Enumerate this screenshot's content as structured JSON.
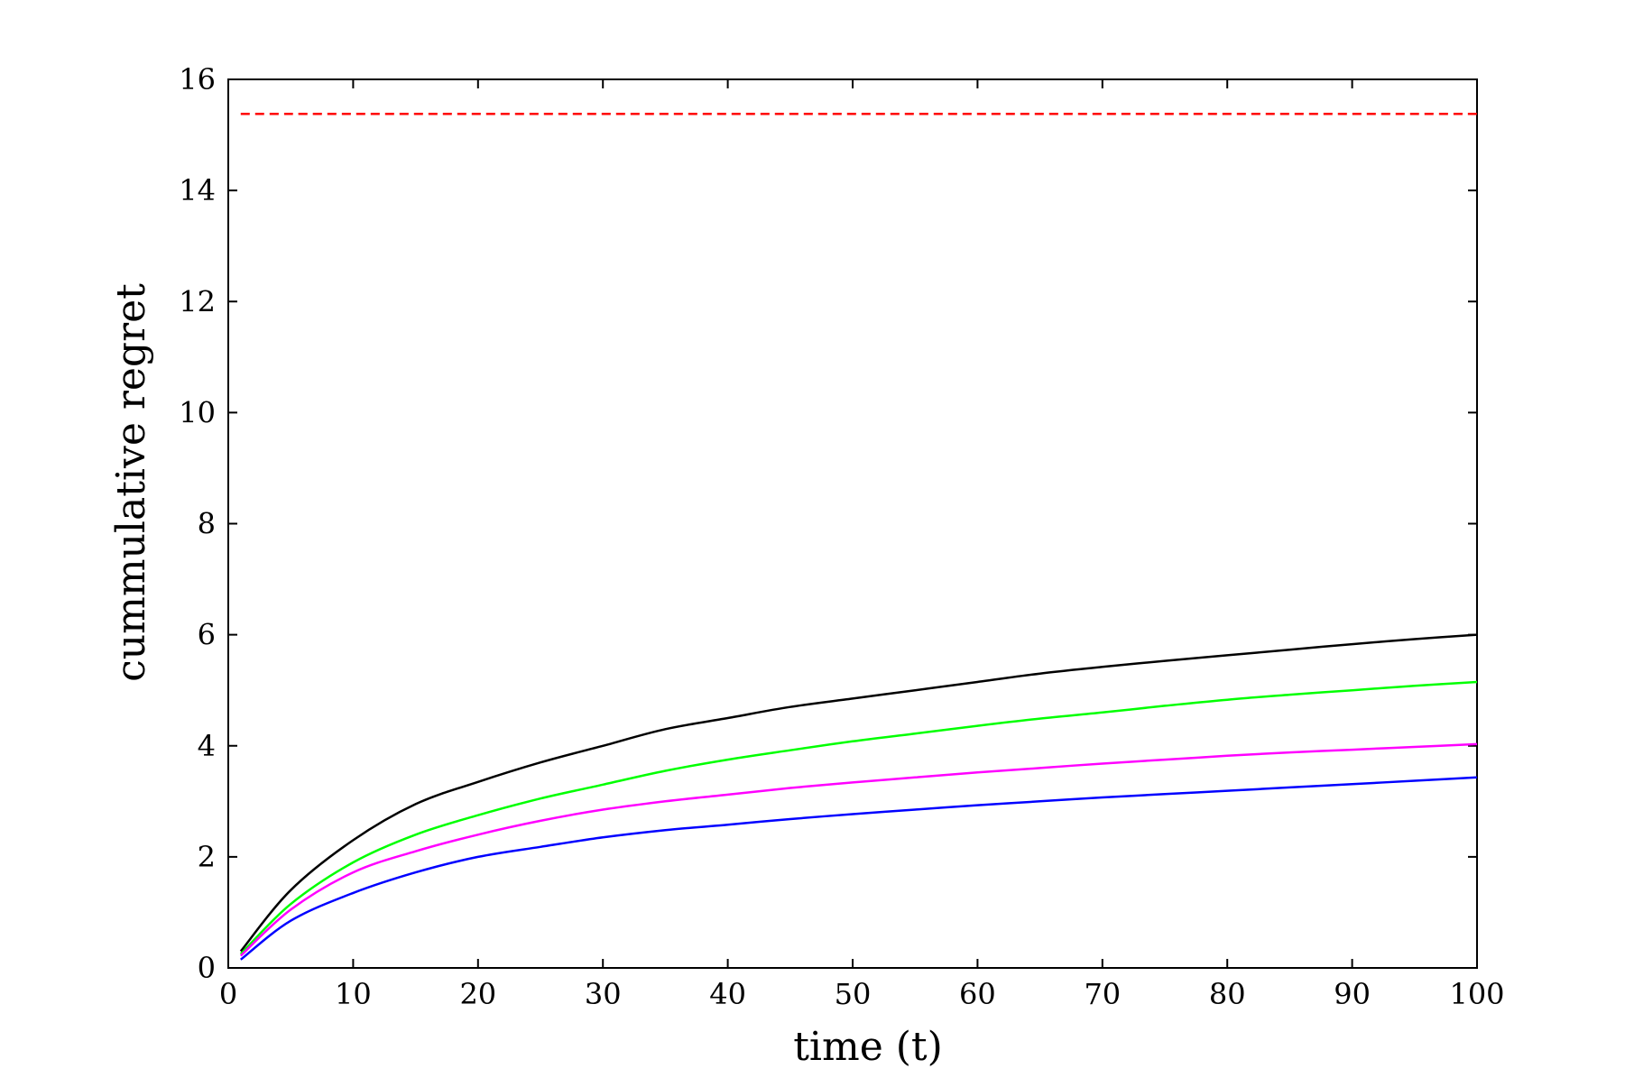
{
  "chart_data": {
    "type": "line",
    "title": "",
    "xlabel": "time (t)",
    "ylabel": "cummulative regret",
    "xlim": [
      0,
      100
    ],
    "ylim": [
      0,
      16
    ],
    "xticks": [
      "0",
      "10",
      "20",
      "30",
      "40",
      "50",
      "60",
      "70",
      "80",
      "90",
      "100"
    ],
    "yticks": [
      "0",
      "2",
      "4",
      "6",
      "8",
      "10",
      "12",
      "14",
      "16"
    ],
    "grid": false,
    "legend": "none",
    "x": [
      1,
      5,
      10,
      15,
      20,
      25,
      30,
      35,
      40,
      45,
      50,
      55,
      60,
      65,
      70,
      75,
      80,
      85,
      90,
      95,
      100
    ],
    "series": [
      {
        "color": "#ff0000",
        "style": "dashed",
        "values": [
          15.38,
          15.38,
          15.38,
          15.38,
          15.38,
          15.38,
          15.38,
          15.38,
          15.38,
          15.38,
          15.38,
          15.38,
          15.38,
          15.38,
          15.38,
          15.38,
          15.38,
          15.38,
          15.38,
          15.38,
          15.38
        ]
      },
      {
        "color": "#000000",
        "style": "solid",
        "values": [
          0.3,
          1.4,
          2.3,
          2.95,
          3.35,
          3.7,
          4.0,
          4.3,
          4.5,
          4.7,
          4.85,
          5.0,
          5.15,
          5.3,
          5.42,
          5.53,
          5.63,
          5.73,
          5.83,
          5.92,
          6.0
        ]
      },
      {
        "color": "#00ff00",
        "style": "solid",
        "values": [
          0.25,
          1.15,
          1.9,
          2.4,
          2.75,
          3.05,
          3.3,
          3.55,
          3.75,
          3.92,
          4.08,
          4.22,
          4.36,
          4.49,
          4.6,
          4.72,
          4.83,
          4.92,
          5.0,
          5.08,
          5.15
        ]
      },
      {
        "color": "#ff00ff",
        "style": "solid",
        "values": [
          0.22,
          1.05,
          1.72,
          2.1,
          2.4,
          2.65,
          2.85,
          3.0,
          3.12,
          3.24,
          3.34,
          3.43,
          3.52,
          3.6,
          3.68,
          3.75,
          3.82,
          3.88,
          3.93,
          3.98,
          4.03
        ]
      },
      {
        "color": "#0000ff",
        "style": "solid",
        "values": [
          0.15,
          0.85,
          1.35,
          1.72,
          2.0,
          2.18,
          2.35,
          2.48,
          2.58,
          2.68,
          2.77,
          2.85,
          2.93,
          3.0,
          3.07,
          3.13,
          3.19,
          3.25,
          3.31,
          3.37,
          3.43
        ]
      }
    ]
  }
}
